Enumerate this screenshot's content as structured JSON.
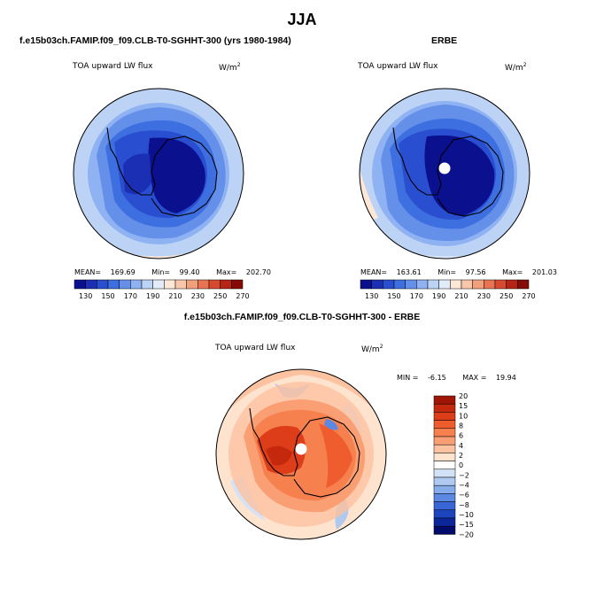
{
  "title": "JJA",
  "panels": [
    {
      "title": "f.e15b03ch.FAMIP.f09_f09.CLB-T0-SGHHT-300 (yrs 1980-1984)",
      "variable": "TOA upward LW flux",
      "units": "W/m",
      "units_exp": "2",
      "stats": {
        "mean_label": "MEAN=",
        "mean": "169.69",
        "min_label": "Min=",
        "min": "99.40",
        "max_label": "Max=",
        "max": "202.70"
      },
      "colorbar": {
        "colors": [
          "#0b108f",
          "#1a2fb4",
          "#2a4ed0",
          "#3d6fe0",
          "#6490ea",
          "#8fb2f2",
          "#bdd3f6",
          "#e2ecf9",
          "#fde7d6",
          "#f8c6a8",
          "#f1a07c",
          "#e87453",
          "#d84a30",
          "#b52415",
          "#860a06"
        ],
        "labels": [
          "130",
          "150",
          "170",
          "190",
          "210",
          "230",
          "250",
          "270"
        ]
      }
    },
    {
      "title": "ERBE",
      "variable": "TOA upward LW flux",
      "units": "W/m",
      "units_exp": "2",
      "stats": {
        "mean_label": "MEAN=",
        "mean": "163.61",
        "min_label": "Min=",
        "min": "97.56",
        "max_label": "Max=",
        "max": "201.03"
      },
      "colorbar": {
        "colors": [
          "#0b108f",
          "#1a2fb4",
          "#2a4ed0",
          "#3d6fe0",
          "#6490ea",
          "#8fb2f2",
          "#bdd3f6",
          "#e2ecf9",
          "#fde7d6",
          "#f8c6a8",
          "#f1a07c",
          "#e87453",
          "#d84a30",
          "#b52415",
          "#860a06"
        ],
        "labels": [
          "130",
          "150",
          "170",
          "190",
          "210",
          "230",
          "250",
          "270"
        ]
      }
    },
    {
      "title": "f.e15b03ch.FAMIP.f09_f09.CLB-T0-SGHHT-300 - ERBE",
      "variable": "TOA upward LW flux",
      "units": "W/m",
      "units_exp": "2",
      "stats": {
        "min_label": "MIN =",
        "min": "-6.15",
        "max_label": "MAX =",
        "max": "19.94"
      },
      "colorbar": {
        "colors": [
          "#a01505",
          "#c4280d",
          "#de3d19",
          "#ef5d2e",
          "#f6814f",
          "#fa9f74",
          "#fdc2a0",
          "#fee3cf",
          "#ffffff",
          "#d4e2f7",
          "#afc9f0",
          "#86acea",
          "#5a88e2",
          "#3866d6",
          "#1d45c0",
          "#0d279b",
          "#020b6a"
        ],
        "labels": [
          "20",
          "15",
          "10",
          "8",
          "6",
          "4",
          "2",
          "0",
          "−2",
          "−4",
          "−6",
          "−8",
          "−10",
          "−15",
          "−20"
        ]
      }
    }
  ]
}
